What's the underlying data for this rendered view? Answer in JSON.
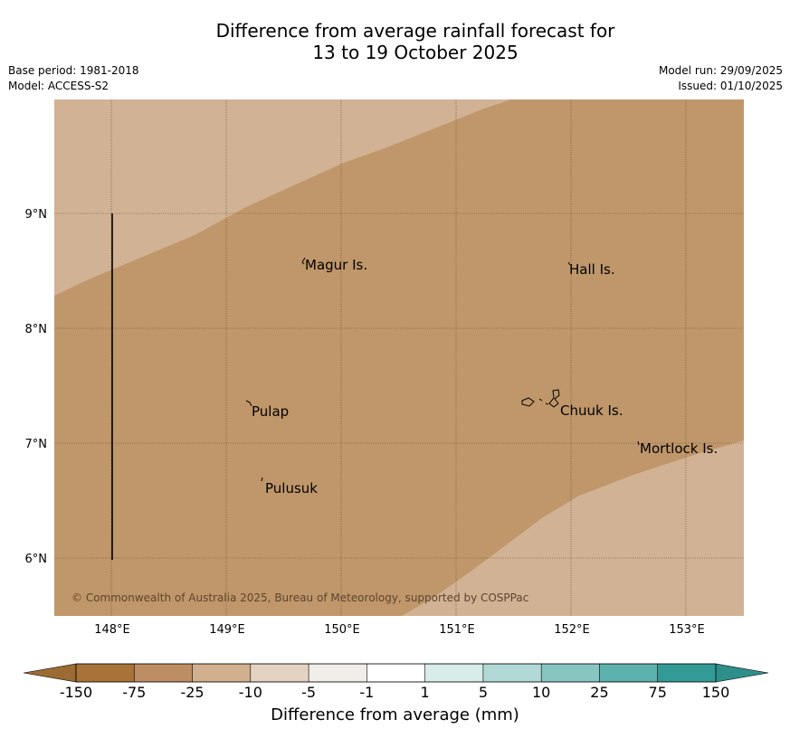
{
  "header": {
    "title_line1": "Difference from average rainfall forecast for",
    "title_line2": "13 to 19 October 2025",
    "base_period": "Base period: 1981-2018",
    "model": "Model: ACCESS-S2",
    "model_run": "Model run: 29/09/2025",
    "issued": "Issued: 01/10/2025"
  },
  "map": {
    "lat_labels": [
      "9°N",
      "8°N",
      "7°N",
      "6°N"
    ],
    "lon_labels": [
      "148°E",
      "149°E",
      "150°E",
      "151°E",
      "152°E",
      "153°E"
    ],
    "places": [
      "Magur Is.",
      "Hall Is.",
      "Pulap",
      "Chuuk Is.",
      "Mortlock Is.",
      "Pulusuk"
    ],
    "copyright": "© Commonwealth of Australia 2025, Bureau of Meteorology, supported by COSPPac",
    "fill_colors": {
      "dry_moderate": "#c0976a",
      "dry_light": "#d2b294"
    }
  },
  "colorbar": {
    "ticks": [
      "-150",
      "-75",
      "-25",
      "-10",
      "-5",
      "-1",
      "1",
      "5",
      "10",
      "25",
      "75",
      "150"
    ],
    "colors": [
      "#a87339",
      "#bd8e63",
      "#d1af8f",
      "#e4d3c3",
      "#f1eee9",
      "#ffffff",
      "#d8ecea",
      "#b0d9d6",
      "#87c5c1",
      "#5eb2ad",
      "#339b96"
    ],
    "under_color": "#9c6a33",
    "over_color": "#2e8f8a",
    "label": "Difference from average (mm)"
  }
}
